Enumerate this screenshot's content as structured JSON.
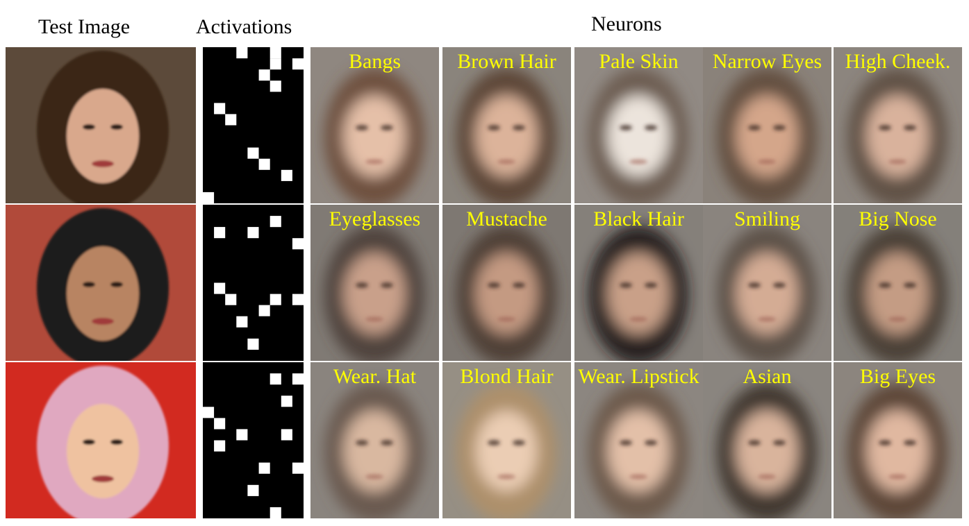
{
  "headers": {
    "test_image": "Test Image",
    "activations": "Activations",
    "neurons": "Neurons"
  },
  "label_color": "#ffff00",
  "rows": [
    {
      "test_image": {
        "hair": "#3a2518",
        "skin": "#d9a88c",
        "background": "#5c4a3a"
      },
      "activations_grid": [
        [
          0,
          0,
          0,
          1,
          0,
          0,
          1,
          0,
          0
        ],
        [
          0,
          0,
          0,
          0,
          0,
          0,
          1,
          0,
          1
        ],
        [
          0,
          0,
          0,
          0,
          0,
          1,
          0,
          0,
          0
        ],
        [
          0,
          0,
          0,
          0,
          0,
          0,
          1,
          0,
          0
        ],
        [
          0,
          0,
          0,
          0,
          0,
          0,
          0,
          0,
          0
        ],
        [
          0,
          1,
          0,
          0,
          0,
          0,
          0,
          0,
          0
        ],
        [
          0,
          0,
          1,
          0,
          0,
          0,
          0,
          0,
          0
        ],
        [
          0,
          0,
          0,
          0,
          0,
          0,
          0,
          0,
          0
        ],
        [
          0,
          0,
          0,
          0,
          0,
          0,
          0,
          0,
          0
        ],
        [
          0,
          0,
          0,
          0,
          1,
          0,
          0,
          0,
          0
        ],
        [
          0,
          0,
          0,
          0,
          0,
          1,
          0,
          0,
          0
        ],
        [
          0,
          0,
          0,
          0,
          0,
          0,
          0,
          1,
          0
        ],
        [
          0,
          0,
          0,
          0,
          0,
          0,
          0,
          0,
          0
        ],
        [
          1,
          0,
          0,
          0,
          0,
          0,
          0,
          0,
          0
        ]
      ],
      "neurons": [
        {
          "label": "Bangs",
          "hair": "#6b4a36",
          "skin": "#e5c0a8",
          "bg": "#8f8780"
        },
        {
          "label": "Brown Hair",
          "hair": "#5a4030",
          "skin": "#dcb39a",
          "bg": "#8a847c"
        },
        {
          "label": "Pale Skin",
          "hair": "#6a5a4e",
          "skin": "#ece4dc",
          "bg": "#918a84"
        },
        {
          "label": "Narrow Eyes",
          "hair": "#5f4a3a",
          "skin": "#d4a68a",
          "bg": "#8a827a"
        },
        {
          "label": "High Cheek.",
          "hair": "#5d4c40",
          "skin": "#d9b29c",
          "bg": "#8c857e"
        }
      ]
    },
    {
      "test_image": {
        "hair": "#1c1a1a",
        "skin": "#b88462",
        "background": "#b14a3a"
      },
      "activations_grid": [
        [
          0,
          0,
          0,
          0,
          0,
          0,
          0,
          0,
          0
        ],
        [
          0,
          0,
          0,
          0,
          0,
          0,
          1,
          0,
          0
        ],
        [
          0,
          1,
          0,
          0,
          1,
          0,
          0,
          0,
          0
        ],
        [
          0,
          0,
          0,
          0,
          0,
          0,
          0,
          0,
          1
        ],
        [
          0,
          0,
          0,
          0,
          0,
          0,
          0,
          0,
          0
        ],
        [
          0,
          0,
          0,
          0,
          0,
          0,
          0,
          0,
          0
        ],
        [
          0,
          0,
          0,
          0,
          0,
          0,
          0,
          0,
          0
        ],
        [
          0,
          1,
          0,
          0,
          0,
          0,
          0,
          0,
          0
        ],
        [
          0,
          0,
          1,
          0,
          0,
          0,
          1,
          0,
          1
        ],
        [
          0,
          0,
          0,
          0,
          0,
          1,
          0,
          0,
          0
        ],
        [
          0,
          0,
          0,
          1,
          0,
          0,
          0,
          0,
          0
        ],
        [
          0,
          0,
          0,
          0,
          0,
          0,
          0,
          0,
          0
        ],
        [
          0,
          0,
          0,
          0,
          1,
          0,
          0,
          0,
          0
        ],
        [
          0,
          0,
          0,
          0,
          0,
          0,
          0,
          0,
          0
        ]
      ],
      "neurons": [
        {
          "label": "Eyeglasses",
          "hair": "#4a3f38",
          "skin": "#c9a08a",
          "bg": "#807a74"
        },
        {
          "label": "Mustache",
          "hair": "#4a3a30",
          "skin": "#c49a82",
          "bg": "#7e7872"
        },
        {
          "label": "Black Hair",
          "hair": "#1e1816",
          "skin": "#c9a088",
          "bg": "#85807a"
        },
        {
          "label": "Smiling",
          "hair": "#5a4c42",
          "skin": "#d4ac94",
          "bg": "#8a847e"
        },
        {
          "label": "Big Nose",
          "hair": "#463a32",
          "skin": "#c49c84",
          "bg": "#84807a"
        }
      ]
    },
    {
      "test_image": {
        "hair": "#e0a8c0",
        "skin": "#efc2a0",
        "background": "#d22a20"
      },
      "activations_grid": [
        [
          0,
          0,
          0,
          0,
          0,
          0,
          0,
          0,
          0
        ],
        [
          0,
          0,
          0,
          0,
          0,
          0,
          1,
          0,
          1
        ],
        [
          0,
          0,
          0,
          0,
          0,
          0,
          0,
          0,
          0
        ],
        [
          0,
          0,
          0,
          0,
          0,
          0,
          0,
          1,
          0
        ],
        [
          1,
          0,
          0,
          0,
          0,
          0,
          0,
          0,
          0
        ],
        [
          0,
          1,
          0,
          0,
          0,
          0,
          0,
          0,
          0
        ],
        [
          0,
          0,
          0,
          1,
          0,
          0,
          0,
          1,
          0
        ],
        [
          0,
          1,
          0,
          0,
          0,
          0,
          0,
          0,
          0
        ],
        [
          0,
          0,
          0,
          0,
          0,
          0,
          0,
          0,
          0
        ],
        [
          0,
          0,
          0,
          0,
          0,
          1,
          0,
          0,
          1
        ],
        [
          0,
          0,
          0,
          0,
          0,
          0,
          0,
          0,
          0
        ],
        [
          0,
          0,
          0,
          0,
          1,
          0,
          0,
          0,
          0
        ],
        [
          0,
          0,
          0,
          0,
          0,
          0,
          0,
          0,
          0
        ],
        [
          0,
          0,
          0,
          0,
          0,
          0,
          1,
          0,
          0
        ]
      ],
      "neurons": [
        {
          "label": "Wear. Hat",
          "hair": "#66554a",
          "skin": "#d9b8a0",
          "bg": "#8a847e"
        },
        {
          "label": "Blond Hair",
          "hair": "#b09068",
          "skin": "#ebcdb4",
          "bg": "#968f84"
        },
        {
          "label": "Wear. Lipstick",
          "hair": "#6a5546",
          "skin": "#e3c0a8",
          "bg": "#8c8680"
        },
        {
          "label": "Asian",
          "hair": "#3a302a",
          "skin": "#d9b49c",
          "bg": "#8a857f"
        },
        {
          "label": "Big Eyes",
          "hair": "#5a4032",
          "skin": "#e0b8a0",
          "bg": "#8c857e"
        }
      ]
    }
  ]
}
